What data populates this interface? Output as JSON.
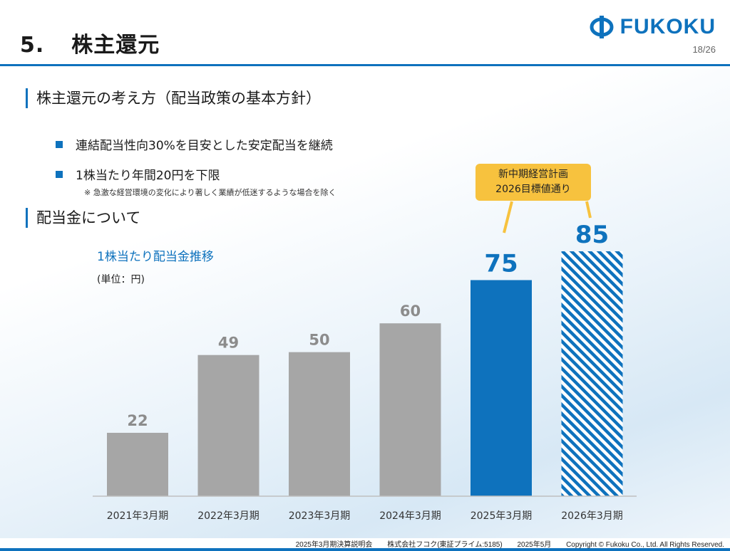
{
  "header": {
    "section_number": "5.",
    "title": "株主還元",
    "logo_text": "FUKOKU",
    "page_number": "18/26"
  },
  "policy": {
    "heading": "株主還元の考え方（配当政策の基本方針）",
    "bullets": [
      "連結配当性向30%を目安とした安定配当を継続",
      "1株当たり年間20円を下限"
    ],
    "note": "※ 急激な経営環境の変化により著しく業績が低迷するような場合を除く"
  },
  "dividend": {
    "heading": "配当金について",
    "chart_title": "1株当たり配当金推移",
    "unit": "(単位：円)",
    "callout_lines": [
      "新中期経営計画",
      "2026目標値通り"
    ]
  },
  "chart_data": {
    "type": "bar",
    "title": "1株当たり配当金推移",
    "ylabel": "(単位：円)",
    "categories": [
      "2021年3月期",
      "2022年3月期",
      "2023年3月期",
      "2024年3月期",
      "2025年3月期",
      "2026年3月期"
    ],
    "values": [
      22,
      49,
      50,
      60,
      75,
      85
    ],
    "ylim": [
      0,
      85
    ],
    "grid": false,
    "colors": {
      "past": "#a6a6a6",
      "current": "#0e72bd",
      "target_hatch": "#0e72bd",
      "past_label": "#8c8c8c",
      "highlight_label": "#0e72bd",
      "callout": "#f7c23e"
    }
  },
  "footer": {
    "event": "2025年3月期決算説明会",
    "company": "株式会社フコク(東証プライム:5185)",
    "date": "2025年5月",
    "copyright": "Copyright © Fukoku Co., Ltd.  All Rights Reserved."
  }
}
